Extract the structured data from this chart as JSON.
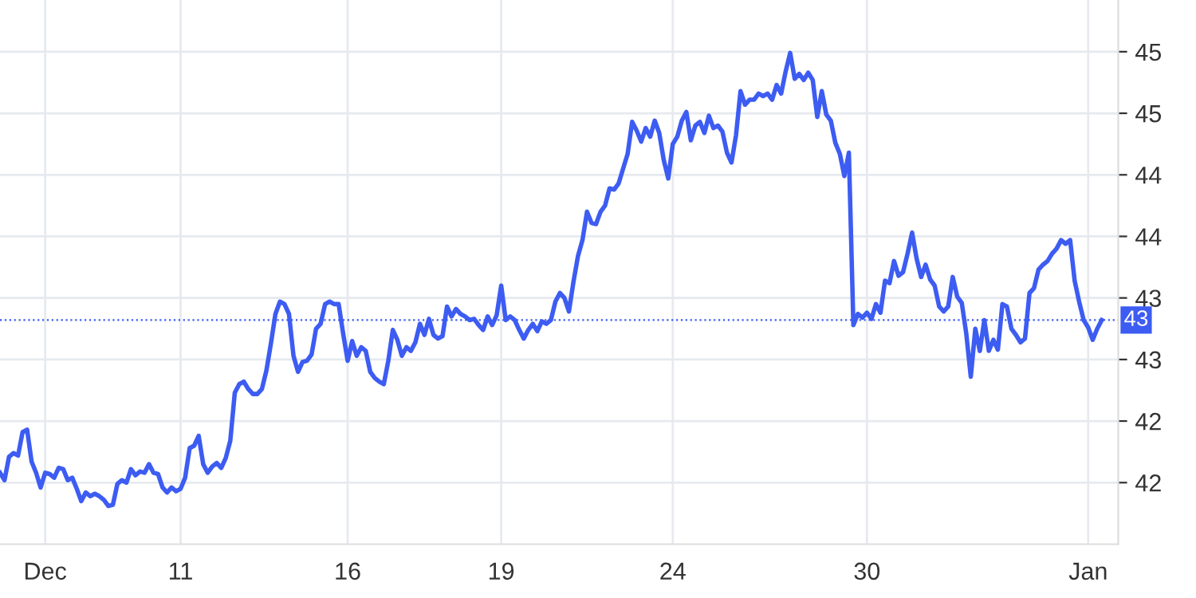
{
  "chart_data": {
    "type": "line",
    "categories": [
      null,
      null,
      null,
      null,
      null,
      null,
      null,
      null,
      null,
      null,
      "Dec",
      null,
      null,
      null,
      null,
      null,
      null,
      null,
      null,
      null,
      null,
      null,
      null,
      null,
      null,
      null,
      null,
      null,
      null,
      null,
      null,
      null,
      null,
      null,
      null,
      null,
      null,
      null,
      null,
      null,
      "11",
      null,
      null,
      null,
      null,
      null,
      null,
      null,
      null,
      null,
      null,
      null,
      null,
      null,
      null,
      null,
      null,
      null,
      null,
      null,
      null,
      null,
      null,
      null,
      null,
      null,
      null,
      null,
      null,
      null,
      null,
      null,
      null,
      null,
      null,
      null,
      null,
      "16",
      null,
      null,
      null,
      null,
      null,
      null,
      null,
      null,
      null,
      null,
      null,
      null,
      null,
      null,
      null,
      null,
      null,
      null,
      null,
      null,
      null,
      null,
      null,
      null,
      null,
      null,
      null,
      null,
      null,
      null,
      null,
      null,
      null,
      "19",
      null,
      null,
      null,
      null,
      null,
      null,
      null,
      null,
      null,
      null,
      null,
      null,
      null,
      null,
      null,
      null,
      null,
      null,
      null,
      null,
      null,
      null,
      null,
      null,
      null,
      null,
      null,
      null,
      null,
      null,
      null,
      null,
      null,
      null,
      null,
      null,
      null,
      "24",
      null,
      null,
      null,
      null,
      null,
      null,
      null,
      null,
      null,
      null,
      null,
      null,
      null,
      null,
      null,
      null,
      null,
      null,
      null,
      null,
      null,
      null,
      null,
      null,
      null,
      null,
      null,
      null,
      null,
      null,
      null,
      null,
      null,
      null,
      null,
      null,
      null,
      null,
      null,
      null,
      null,
      null,
      "30",
      null,
      null,
      null,
      null,
      null,
      null,
      null,
      null,
      null,
      null,
      null,
      null,
      null,
      null,
      null,
      null,
      null,
      null,
      null,
      null,
      null,
      null,
      null,
      null,
      null,
      null,
      null,
      null,
      null,
      null,
      null,
      null,
      null,
      null,
      null,
      null,
      null,
      null,
      null,
      null,
      null,
      null,
      null,
      null,
      null,
      null,
      null,
      null,
      "Jan",
      null,
      null,
      null
    ],
    "series": [
      {
        "color": "#3d5cf2",
        "values": [
          42.08,
          42.02,
          42.21,
          42.24,
          42.22,
          42.41,
          42.43,
          42.17,
          42.08,
          41.96,
          42.08,
          42.07,
          42.04,
          42.12,
          42.11,
          42.02,
          42.04,
          41.95,
          41.85,
          41.92,
          41.89,
          41.91,
          41.89,
          41.86,
          41.81,
          41.82,
          41.99,
          42.02,
          42.0,
          42.11,
          42.06,
          42.09,
          42.08,
          42.15,
          42.08,
          42.07,
          41.96,
          41.92,
          41.96,
          41.93,
          41.95,
          42.04,
          42.28,
          42.3,
          42.38,
          42.15,
          42.08,
          42.13,
          42.16,
          42.12,
          42.2,
          42.34,
          42.73,
          42.8,
          42.82,
          42.76,
          42.72,
          42.72,
          42.76,
          42.91,
          43.13,
          43.37,
          43.47,
          43.45,
          43.37,
          43.03,
          42.9,
          42.98,
          42.99,
          43.04,
          43.25,
          43.29,
          43.45,
          43.47,
          43.45,
          43.45,
          43.21,
          42.99,
          43.15,
          43.03,
          43.1,
          43.07,
          42.9,
          42.85,
          42.82,
          42.8,
          42.99,
          43.24,
          43.16,
          43.03,
          43.1,
          43.07,
          43.14,
          43.29,
          43.2,
          43.33,
          43.2,
          43.17,
          43.19,
          43.43,
          43.35,
          43.41,
          43.37,
          43.35,
          43.32,
          43.33,
          43.28,
          43.24,
          43.35,
          43.28,
          43.36,
          43.6,
          43.32,
          43.35,
          43.32,
          43.24,
          43.17,
          43.24,
          43.29,
          43.23,
          43.31,
          43.29,
          43.32,
          43.47,
          43.54,
          43.5,
          43.39,
          43.63,
          43.84,
          43.97,
          44.2,
          44.11,
          44.1,
          44.2,
          44.25,
          44.39,
          44.38,
          44.43,
          44.55,
          44.67,
          44.93,
          44.86,
          44.77,
          44.88,
          44.81,
          44.94,
          44.84,
          44.62,
          44.47,
          44.75,
          44.81,
          44.94,
          45.01,
          44.78,
          44.9,
          44.93,
          44.84,
          44.98,
          44.88,
          44.9,
          44.85,
          44.68,
          44.6,
          44.82,
          45.18,
          45.07,
          45.11,
          45.11,
          45.16,
          45.14,
          45.16,
          45.11,
          45.23,
          45.16,
          45.34,
          45.49,
          45.28,
          45.32,
          45.27,
          45.33,
          45.27,
          44.97,
          45.18,
          44.99,
          44.94,
          44.76,
          44.67,
          44.49,
          44.68,
          43.28,
          43.37,
          43.34,
          43.38,
          43.33,
          43.45,
          43.38,
          43.64,
          43.62,
          43.8,
          43.68,
          43.71,
          43.86,
          44.03,
          43.82,
          43.67,
          43.77,
          43.65,
          43.6,
          43.43,
          43.39,
          43.43,
          43.67,
          43.51,
          43.46,
          43.21,
          42.86,
          43.25,
          43.07,
          43.32,
          43.07,
          43.16,
          43.08,
          43.45,
          43.43,
          43.25,
          43.2,
          43.14,
          43.17,
          43.54,
          43.58,
          43.73,
          43.77,
          43.8,
          43.86,
          43.9,
          43.97,
          43.94,
          43.97,
          43.64,
          43.47,
          43.32,
          43.26,
          43.16,
          43.25,
          43.32
        ]
      }
    ],
    "ylim": [
      41.5,
      45.92
    ],
    "yticks": [
      {
        "value": 42.0,
        "label": "42"
      },
      {
        "value": 42.5,
        "label": "42"
      },
      {
        "value": 43.0,
        "label": "43"
      },
      {
        "value": 43.5,
        "label": "43"
      },
      {
        "value": 44.0,
        "label": "44"
      },
      {
        "value": 44.5,
        "label": "44"
      },
      {
        "value": 45.0,
        "label": "45"
      },
      {
        "value": 45.5,
        "label": "45"
      }
    ],
    "ref_lines": [
      {
        "axis": "y",
        "value": 43.32,
        "label": "43",
        "color": "#3d5cf2",
        "line_style": "dotted"
      }
    ],
    "grid": true,
    "legend": false
  }
}
